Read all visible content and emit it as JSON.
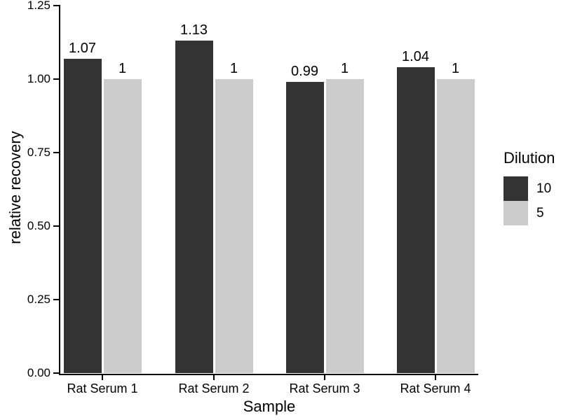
{
  "chart_data": {
    "type": "bar",
    "title": "",
    "xlabel": "Sample",
    "ylabel": "relative recovery",
    "categories": [
      "Rat Serum 1",
      "Rat Serum 2",
      "Rat Serum 3",
      "Rat Serum 4"
    ],
    "series": [
      {
        "name": "10",
        "color": "#333333",
        "values": [
          1.07,
          1.13,
          0.99,
          1.04
        ],
        "bar_labels": [
          "1.07",
          "1.13",
          "0.99",
          "1.04"
        ]
      },
      {
        "name": "5",
        "color": "#cccccc",
        "values": [
          1,
          1,
          1,
          1
        ],
        "bar_labels": [
          "1",
          "1",
          "1",
          "1"
        ]
      }
    ],
    "ylim": [
      0,
      1.25
    ],
    "yticks": [
      {
        "value": 0.0,
        "label": "0.00"
      },
      {
        "value": 0.25,
        "label": "0.25"
      },
      {
        "value": 0.5,
        "label": "0.50"
      },
      {
        "value": 0.75,
        "label": "0.75"
      },
      {
        "value": 1.0,
        "label": "1.00"
      },
      {
        "value": 1.25,
        "label": "1.25"
      }
    ],
    "grid": false,
    "background": "#ffffff",
    "text_color": "#000000",
    "legend": {
      "title": "Dilution",
      "position": "right",
      "entries": [
        "10",
        "5"
      ]
    }
  }
}
